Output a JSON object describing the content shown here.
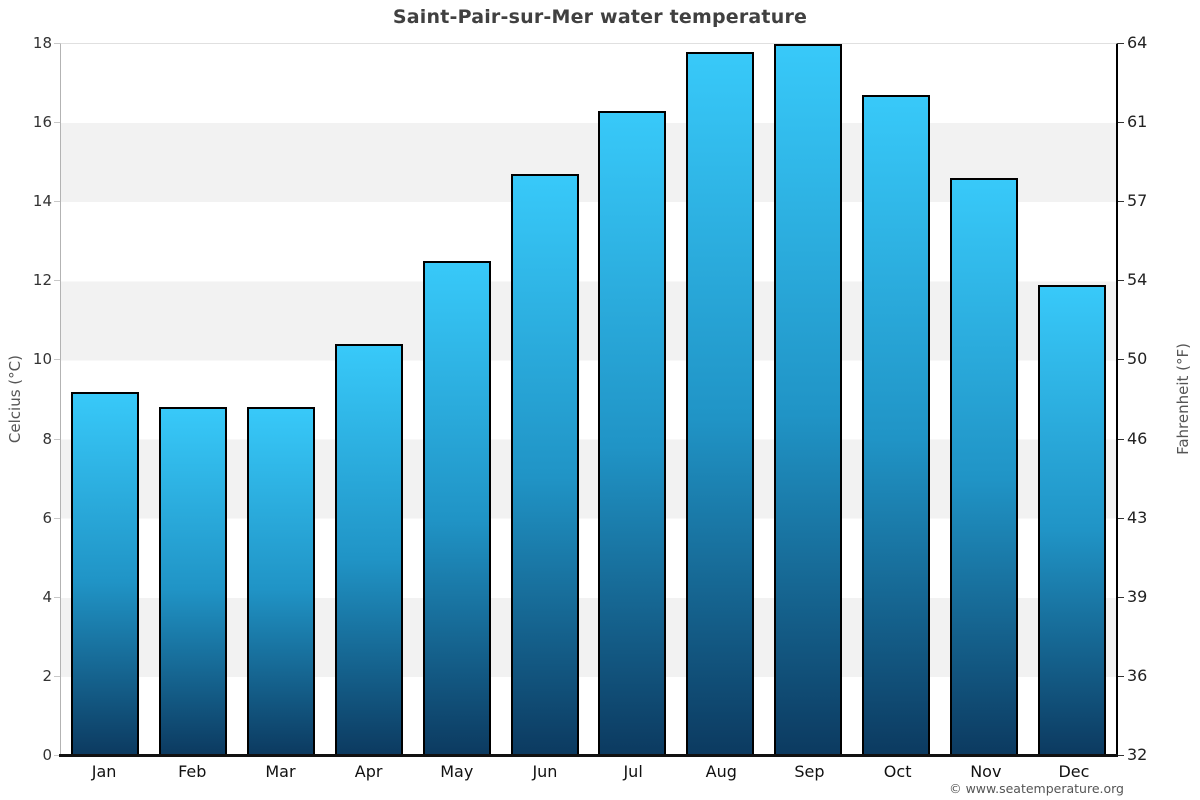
{
  "title": "Saint-Pair-sur-Mer water temperature",
  "footer": "© www.seatemperature.org",
  "axes": {
    "left_label": "Celcius (°C)",
    "right_label": "Fahrenheit (°F)",
    "celsius_ticks": [
      0,
      2,
      4,
      6,
      8,
      10,
      12,
      14,
      16,
      18
    ],
    "fahrenheit_ticks": [
      32,
      36,
      39,
      43,
      46,
      50,
      54,
      57,
      61,
      64
    ]
  },
  "colors": {
    "bar_gradient_top": "#38c9f9",
    "bar_gradient_mid": "#2094c6",
    "bar_gradient_bottom": "#0c3a60",
    "bar_border": "#000000",
    "band_gray": "#f2f2f2",
    "band_white": "#ffffff",
    "title_text": "#404040",
    "axis_text": "#333333",
    "footer_text": "#555555"
  },
  "chart_data": {
    "type": "bar",
    "title": "Saint-Pair-sur-Mer water temperature",
    "categories": [
      "Jan",
      "Feb",
      "Mar",
      "Apr",
      "May",
      "Jun",
      "Jul",
      "Aug",
      "Sep",
      "Oct",
      "Nov",
      "Dec"
    ],
    "values": [
      9.2,
      8.8,
      8.8,
      10.4,
      12.5,
      14.7,
      16.3,
      17.8,
      18.0,
      16.7,
      14.6,
      11.9
    ],
    "xlabel": "",
    "ylabel": "Celcius (°C)",
    "ylim": [
      0,
      18
    ],
    "y2label": "Fahrenheit (°F)",
    "y2lim": [
      32,
      64.4
    ],
    "y2_tick_values": [
      32,
      36,
      39,
      43,
      46,
      50,
      54,
      57,
      61,
      64
    ],
    "grid": "alternating horizontal bands every 2 °C (white / #f2f2f2)",
    "legend": "none",
    "bar_style": "vertical gradient light cyan top to dark navy bottom, black outline"
  }
}
